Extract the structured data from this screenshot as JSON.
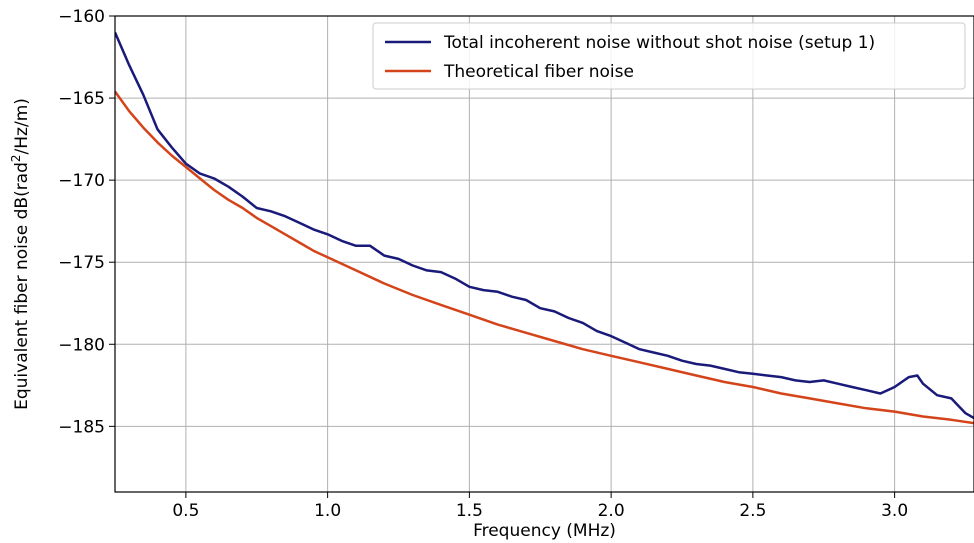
{
  "chart_data": {
    "type": "line",
    "title": "",
    "xlabel": "Frequency (MHz)",
    "ylabel": {
      "prefix": "Equivalent fiber noise  dB(rad",
      "sup": "2",
      "suffix": "/Hz/m)"
    },
    "xlim": [
      0.25,
      3.28
    ],
    "ylim": [
      -189,
      -160
    ],
    "x_ticks": [
      0.5,
      1.0,
      1.5,
      2.0,
      2.5,
      3.0
    ],
    "x_tick_labels": [
      "0.5",
      "1.0",
      "1.5",
      "2.0",
      "2.5",
      "3.0"
    ],
    "y_ticks": [
      -160,
      -165,
      -170,
      -175,
      -180,
      -185
    ],
    "y_tick_labels": [
      "−160",
      "−165",
      "−170",
      "−175",
      "−180",
      "−185"
    ],
    "grid": true,
    "legend_position": "top-right",
    "series": [
      {
        "name": "Total incoherent noise without shot noise (setup 1)",
        "color": "#1a1a7a",
        "x": [
          0.25,
          0.3,
          0.35,
          0.4,
          0.45,
          0.5,
          0.55,
          0.6,
          0.65,
          0.7,
          0.75,
          0.8,
          0.85,
          0.9,
          0.95,
          1.0,
          1.05,
          1.1,
          1.15,
          1.2,
          1.25,
          1.3,
          1.35,
          1.4,
          1.45,
          1.5,
          1.55,
          1.6,
          1.65,
          1.7,
          1.75,
          1.8,
          1.85,
          1.9,
          1.95,
          2.0,
          2.05,
          2.1,
          2.15,
          2.2,
          2.25,
          2.3,
          2.35,
          2.4,
          2.45,
          2.5,
          2.55,
          2.6,
          2.65,
          2.7,
          2.75,
          2.8,
          2.85,
          2.9,
          2.95,
          3.0,
          3.05,
          3.08,
          3.1,
          3.15,
          3.2,
          3.25,
          3.28
        ],
        "y": [
          -161.0,
          -163.0,
          -164.8,
          -166.9,
          -168.0,
          -169.0,
          -169.6,
          -169.9,
          -170.4,
          -171.0,
          -171.7,
          -171.9,
          -172.2,
          -172.6,
          -173.0,
          -173.3,
          -173.7,
          -174.0,
          -174.0,
          -174.6,
          -174.8,
          -175.2,
          -175.5,
          -175.6,
          -176.0,
          -176.5,
          -176.7,
          -176.8,
          -177.1,
          -177.3,
          -177.8,
          -178.0,
          -178.4,
          -178.7,
          -179.2,
          -179.5,
          -179.9,
          -180.3,
          -180.5,
          -180.7,
          -181.0,
          -181.2,
          -181.3,
          -181.5,
          -181.7,
          -181.8,
          -181.9,
          -182.0,
          -182.2,
          -182.3,
          -182.2,
          -182.4,
          -182.6,
          -182.8,
          -183.0,
          -182.6,
          -182.0,
          -181.9,
          -182.4,
          -183.1,
          -183.3,
          -184.2,
          -184.5
        ]
      },
      {
        "name": "Theoretical fiber noise",
        "color": "#d4441b",
        "x": [
          0.25,
          0.3,
          0.35,
          0.4,
          0.45,
          0.5,
          0.55,
          0.6,
          0.65,
          0.7,
          0.75,
          0.8,
          0.85,
          0.9,
          0.95,
          1.0,
          1.1,
          1.2,
          1.3,
          1.4,
          1.5,
          1.6,
          1.7,
          1.8,
          1.9,
          2.0,
          2.1,
          2.2,
          2.3,
          2.4,
          2.5,
          2.6,
          2.7,
          2.8,
          2.9,
          3.0,
          3.1,
          3.2,
          3.28
        ],
        "y": [
          -164.6,
          -165.8,
          -166.8,
          -167.7,
          -168.5,
          -169.2,
          -169.9,
          -170.6,
          -171.2,
          -171.7,
          -172.3,
          -172.8,
          -173.3,
          -173.8,
          -174.3,
          -174.7,
          -175.5,
          -176.3,
          -177.0,
          -177.6,
          -178.2,
          -178.8,
          -179.3,
          -179.8,
          -180.3,
          -180.7,
          -181.1,
          -181.5,
          -181.9,
          -182.3,
          -182.6,
          -183.0,
          -183.3,
          -183.6,
          -183.9,
          -184.1,
          -184.4,
          -184.6,
          -184.8
        ]
      }
    ]
  }
}
